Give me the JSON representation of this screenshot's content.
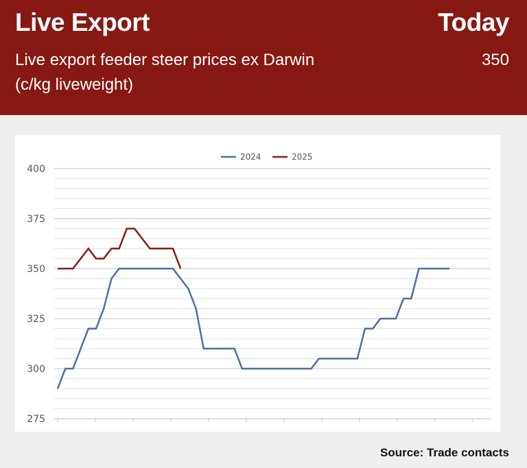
{
  "header": {
    "title": "Live Export",
    "period": "Today",
    "subtitle": "Live export feeder steer prices ex Darwin (c/kg liveweight)",
    "value": "350"
  },
  "footer": {
    "source": "Source: Trade contacts"
  },
  "colors": {
    "header_bg": "#861911",
    "series_2024": "#4a6fa5",
    "series_2025": "#8b1a14"
  },
  "chart_data": {
    "type": "line",
    "title": "",
    "xlabel": "",
    "ylabel": "",
    "ylim": [
      275,
      400
    ],
    "yticks": [
      "275",
      "300",
      "325",
      "350",
      "375",
      "400"
    ],
    "grid": true,
    "legend_position": "top-center",
    "x_count": 52,
    "series": [
      {
        "name": "2024",
        "color": "#4a6fa5",
        "values": [
          290,
          300,
          300,
          310,
          320,
          320,
          330,
          345,
          350,
          350,
          350,
          350,
          350,
          350,
          350,
          350,
          345,
          340,
          330,
          310,
          310,
          310,
          310,
          310,
          300,
          300,
          300,
          300,
          300,
          300,
          300,
          300,
          300,
          300,
          305,
          305,
          305,
          305,
          305,
          305,
          320,
          320,
          325,
          325,
          325,
          335,
          335,
          350,
          350,
          350,
          350,
          350
        ]
      },
      {
        "name": "2025",
        "color": "#8b1a14",
        "values": [
          350,
          350,
          350,
          355,
          360,
          355,
          355,
          360,
          360,
          370,
          370,
          365,
          360,
          360,
          360,
          360,
          350
        ]
      }
    ]
  }
}
